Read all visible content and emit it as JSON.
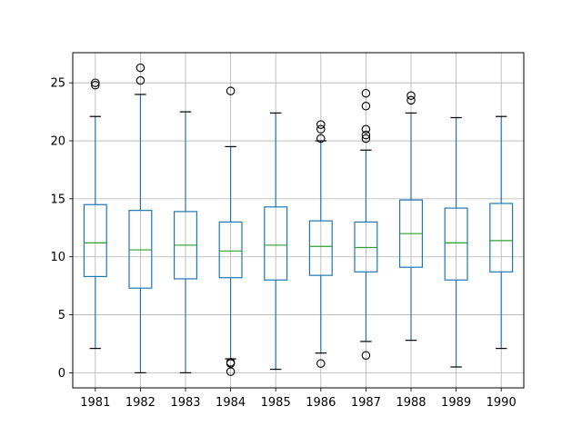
{
  "chart_data": {
    "type": "boxplot",
    "title": "",
    "xlabel": "",
    "ylabel": "",
    "ylim": [
      -1.3,
      27.6
    ],
    "yticks": [
      0,
      5,
      10,
      15,
      20,
      25
    ],
    "grid": true,
    "colors": {
      "box": "#1f77b4",
      "median": "#2ca02c",
      "whisker_cap": "#000000",
      "flier": "#000000",
      "grid": "#b0b0b0"
    },
    "categories": [
      "1981",
      "1982",
      "1983",
      "1984",
      "1985",
      "1986",
      "1987",
      "1988",
      "1989",
      "1990"
    ],
    "boxes": [
      {
        "label": "1981",
        "whislo": 2.1,
        "q1": 8.3,
        "median": 11.2,
        "q3": 14.5,
        "whishi": 22.1,
        "fliers": [
          24.8,
          25.0
        ]
      },
      {
        "label": "1982",
        "whislo": 0.0,
        "q1": 7.3,
        "median": 10.6,
        "q3": 14.0,
        "whishi": 24.0,
        "fliers": [
          25.2,
          26.3
        ]
      },
      {
        "label": "1983",
        "whislo": 0.0,
        "q1": 8.1,
        "median": 11.0,
        "q3": 13.9,
        "whishi": 22.5,
        "fliers": []
      },
      {
        "label": "1984",
        "whislo": 1.2,
        "q1": 8.2,
        "median": 10.5,
        "q3": 13.0,
        "whishi": 19.5,
        "fliers": [
          0.8,
          0.9,
          0.1,
          24.3
        ]
      },
      {
        "label": "1985",
        "whislo": 0.3,
        "q1": 8.0,
        "median": 11.0,
        "q3": 14.3,
        "whishi": 22.4,
        "fliers": []
      },
      {
        "label": "1986",
        "whislo": 1.7,
        "q1": 8.4,
        "median": 10.9,
        "q3": 13.1,
        "whishi": 20.0,
        "fliers": [
          0.8,
          20.2,
          21.0,
          21.4
        ]
      },
      {
        "label": "1987",
        "whislo": 2.7,
        "q1": 8.7,
        "median": 10.8,
        "q3": 13.0,
        "whishi": 19.2,
        "fliers": [
          1.5,
          20.2,
          20.5,
          21.0,
          23.0,
          24.1
        ]
      },
      {
        "label": "1988",
        "whislo": 2.8,
        "q1": 9.1,
        "median": 12.0,
        "q3": 14.9,
        "whishi": 22.4,
        "fliers": [
          23.5,
          23.9
        ]
      },
      {
        "label": "1989",
        "whislo": 0.5,
        "q1": 8.0,
        "median": 11.2,
        "q3": 14.2,
        "whishi": 22.0,
        "fliers": []
      },
      {
        "label": "1990",
        "whislo": 2.1,
        "q1": 8.7,
        "median": 11.4,
        "q3": 14.6,
        "whishi": 22.1,
        "fliers": []
      }
    ]
  }
}
